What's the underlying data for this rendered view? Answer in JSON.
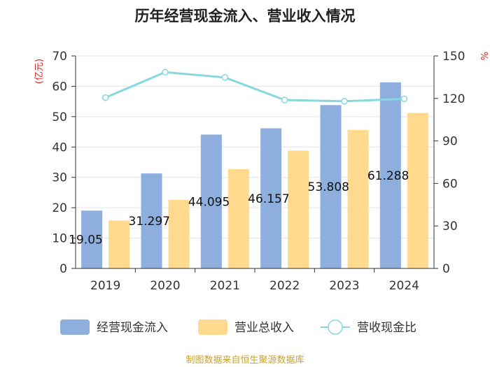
{
  "chart_data": {
    "type": "bar",
    "title": "历年经营现金流入、营业收入情况",
    "categories": [
      "2019",
      "2020",
      "2021",
      "2022",
      "2023",
      "2024"
    ],
    "left_axis": {
      "unit": "(亿元)",
      "ylim": [
        0,
        70
      ],
      "ticks": [
        "0",
        "10",
        "20",
        "30",
        "40",
        "50",
        "60",
        "70"
      ]
    },
    "right_axis": {
      "unit": "%",
      "ylim": [
        0,
        150
      ],
      "ticks": [
        "0",
        "30",
        "60",
        "90",
        "120",
        "150"
      ]
    },
    "series": [
      {
        "name": "经营现金流入",
        "type": "bar",
        "axis": "left",
        "color": "#8eaede",
        "values": [
          19.05,
          31.297,
          44.095,
          46.157,
          53.808,
          61.288
        ],
        "labels": [
          "19.05",
          "31.297",
          "44.095",
          "46.157",
          "53.808",
          "61.288"
        ]
      },
      {
        "name": "营业总收入",
        "type": "bar",
        "axis": "left",
        "color": "#ffd98e",
        "values": [
          15.8,
          22.6,
          32.7,
          38.8,
          45.6,
          51.2
        ]
      },
      {
        "name": "营收现金比",
        "type": "line",
        "axis": "right",
        "color": "#86d8de",
        "values": [
          120.6,
          138.5,
          134.8,
          118.9,
          118.0,
          119.7
        ]
      }
    ],
    "grid": true,
    "legend_position": "bottom"
  },
  "source": "制图数据来自恒生聚源数据库"
}
